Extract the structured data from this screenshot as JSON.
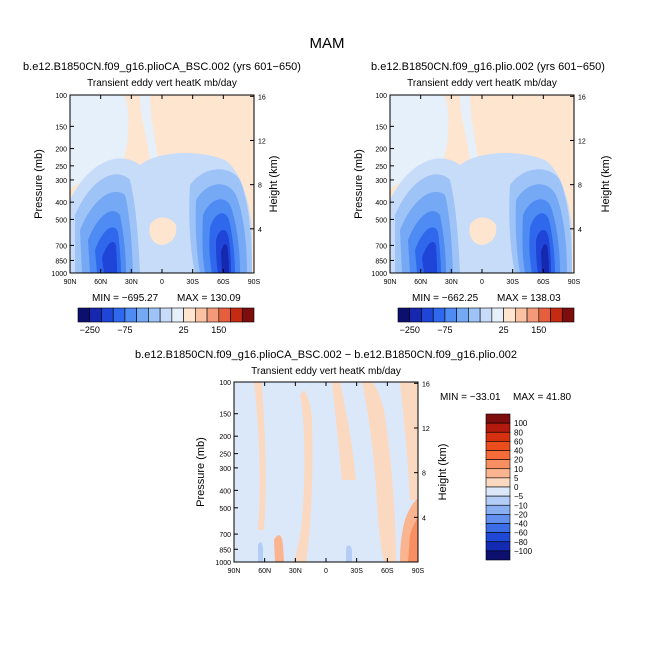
{
  "figure_title": "MAM",
  "chart_data": [
    {
      "type": "heatmap",
      "id": "panel_a",
      "title": "b.e12.B1850CN.f09_g16.plioCA_BSC.002 (yrs 601−650)",
      "subtitle": "Transient eddy vert heatK mb/day",
      "xlabel": "",
      "ylabel": "Pressure (mb)",
      "y2label": "Height (km)",
      "x_ticks": [
        "90N",
        "60N",
        "30N",
        "0",
        "30S",
        "60S",
        "90S"
      ],
      "x_tick_values": [
        90,
        60,
        30,
        0,
        -30,
        -60,
        -90
      ],
      "y_ticks": [
        "100",
        "150",
        "200",
        "250",
        "300",
        "400",
        "500",
        "700",
        "850",
        "1000"
      ],
      "y_tick_values": [
        100,
        150,
        200,
        250,
        300,
        400,
        500,
        700,
        850,
        1000
      ],
      "y2_ticks": [
        "16",
        "12",
        "8",
        "4"
      ],
      "y2_tick_values": [
        16,
        12,
        8,
        4
      ],
      "xlim": [
        90,
        -90
      ],
      "ylim": [
        1000,
        100
      ],
      "min_label": "MIN = −695.27",
      "max_label": "MAX = 130.09",
      "min": -695.27,
      "max": 130.09,
      "colorbar_labels": [
        "−250",
        "−75",
        "25",
        "150"
      ]
    },
    {
      "type": "heatmap",
      "id": "panel_b",
      "title": "b.e12.B1850CN.f09_g16.plio.002 (yrs 601−650)",
      "subtitle": "Transient eddy vert heatK mb/day",
      "xlabel": "",
      "ylabel": "Pressure (mb)",
      "y2label": "Height (km)",
      "x_ticks": [
        "90N",
        "60N",
        "30N",
        "0",
        "30S",
        "60S",
        "90S"
      ],
      "x_tick_values": [
        90,
        60,
        30,
        0,
        -30,
        -60,
        -90
      ],
      "y_ticks": [
        "100",
        "150",
        "200",
        "250",
        "300",
        "400",
        "500",
        "700",
        "850",
        "1000"
      ],
      "y_tick_values": [
        100,
        150,
        200,
        250,
        300,
        400,
        500,
        700,
        850,
        1000
      ],
      "y2_ticks": [
        "16",
        "12",
        "8",
        "4"
      ],
      "y2_tick_values": [
        16,
        12,
        8,
        4
      ],
      "xlim": [
        90,
        -90
      ],
      "ylim": [
        1000,
        100
      ],
      "min_label": "MIN = −662.25",
      "max_label": "MAX = 138.03",
      "min": -662.25,
      "max": 138.03,
      "colorbar_labels": [
        "−250",
        "−75",
        "25",
        "150"
      ]
    },
    {
      "type": "heatmap",
      "id": "panel_c",
      "title": "b.e12.B1850CN.f09_g16.plioCA_BSC.002 − b.e12.B1850CN.f09_g16.plio.002",
      "subtitle": "Transient eddy vert heatK mb/day",
      "xlabel": "",
      "ylabel": "Pressure (mb)",
      "y2label": "Height (km)",
      "x_ticks": [
        "90N",
        "60N",
        "30N",
        "0",
        "30S",
        "60S",
        "90S"
      ],
      "x_tick_values": [
        90,
        60,
        30,
        0,
        -30,
        -60,
        -90
      ],
      "y_ticks": [
        "100",
        "150",
        "200",
        "250",
        "300",
        "400",
        "500",
        "700",
        "850",
        "1000"
      ],
      "y_tick_values": [
        100,
        150,
        200,
        250,
        300,
        400,
        500,
        700,
        850,
        1000
      ],
      "y2_ticks": [
        "16",
        "12",
        "8",
        "4"
      ],
      "y2_tick_values": [
        16,
        12,
        8,
        4
      ],
      "xlim": [
        90,
        -90
      ],
      "ylim": [
        1000,
        100
      ],
      "min_label": "MIN = −33.01",
      "max_label": "MAX =  41.80",
      "min": -33.01,
      "max": 41.8,
      "colorbar_labels": [
        "100",
        "80",
        "60",
        "40",
        "20",
        "10",
        "5",
        "0",
        "−5",
        "−10",
        "−20",
        "−40",
        "−60",
        "−80",
        "−100"
      ]
    }
  ],
  "palette_top": [
    "#0c0f6e",
    "#1627b0",
    "#1e44d8",
    "#2f68ec",
    "#4e8bf2",
    "#75a8f5",
    "#9ec3f7",
    "#c7dcf8",
    "#e6f0fb",
    "#fde5d0",
    "#f9c3a3",
    "#f39b78",
    "#e55f3c",
    "#c52a13",
    "#7e0e0e"
  ],
  "palette_diff": [
    "#7e0e0e",
    "#b31a0d",
    "#d5300f",
    "#ec4d1c",
    "#f56b3a",
    "#f88f63",
    "#fab48f",
    "#fbd9c0",
    "#dbe8fa",
    "#b4cdf6",
    "#8bb0f2",
    "#6390ee",
    "#3d6de6",
    "#2048d6",
    "#132bb3",
    "#0c0f6e"
  ]
}
